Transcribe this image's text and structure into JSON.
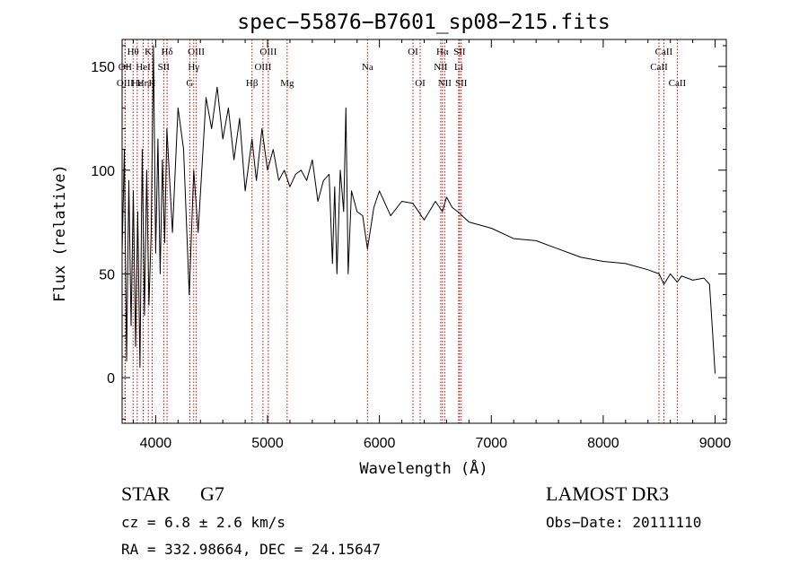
{
  "chart_data": {
    "type": "line",
    "title": "spec−55876−B7601_sp08−215.fits",
    "xlabel": "Wavelength (Å)",
    "ylabel": "Flux (relative)",
    "xlim": [
      3700,
      9100
    ],
    "ylim": [
      -22,
      163
    ],
    "xticks": [
      4000,
      5000,
      6000,
      7000,
      8000,
      9000
    ],
    "xtick_labels": [
      "4000",
      "5000",
      "6000",
      "7000",
      "8000",
      "9000"
    ],
    "yticks": [
      0,
      50,
      100,
      150
    ],
    "ytick_labels": [
      "0",
      "50",
      "100",
      "150"
    ],
    "series": [
      {
        "name": "flux",
        "x": [
          3700,
          3720,
          3740,
          3760,
          3780,
          3800,
          3820,
          3840,
          3860,
          3880,
          3900,
          3920,
          3940,
          3960,
          3980,
          4000,
          4020,
          4040,
          4060,
          4080,
          4100,
          4150,
          4200,
          4250,
          4300,
          4340,
          4380,
          4450,
          4500,
          4550,
          4600,
          4650,
          4700,
          4750,
          4800,
          4861,
          4900,
          4950,
          5000,
          5050,
          5100,
          5150,
          5200,
          5250,
          5300,
          5350,
          5400,
          5450,
          5500,
          5550,
          5580,
          5600,
          5620,
          5650,
          5680,
          5700,
          5720,
          5750,
          5800,
          5850,
          5893,
          5950,
          6000,
          6100,
          6200,
          6300,
          6400,
          6500,
          6563,
          6600,
          6650,
          6700,
          6800,
          7000,
          7200,
          7400,
          7600,
          7800,
          8000,
          8200,
          8400,
          8500,
          8542,
          8600,
          8662,
          8700,
          8800,
          8900,
          8950,
          8980,
          9000
        ],
        "values": [
          60,
          110,
          8,
          95,
          25,
          90,
          15,
          80,
          5,
          110,
          30,
          100,
          35,
          70,
          160,
          60,
          115,
          50,
          105,
          65,
          120,
          70,
          130,
          110,
          40,
          100,
          70,
          135,
          120,
          140,
          115,
          130,
          105,
          125,
          90,
          115,
          95,
          120,
          100,
          110,
          95,
          100,
          92,
          98,
          100,
          95,
          105,
          85,
          95,
          98,
          55,
          92,
          50,
          100,
          80,
          130,
          50,
          90,
          80,
          78,
          62,
          82,
          90,
          78,
          85,
          84,
          76,
          85,
          80,
          87,
          82,
          80,
          75,
          72,
          67,
          66,
          62,
          58,
          56,
          55,
          52,
          50,
          45,
          50,
          46,
          49,
          47,
          48,
          45,
          20,
          2
        ]
      }
    ],
    "spectral_lines": [
      {
        "label": "Hθ",
        "wavelength": 3798,
        "row": 0
      },
      {
        "label": "OII",
        "wavelength": 3727,
        "row": 1
      },
      {
        "label": "OIII",
        "wavelength": 3727,
        "row": 2
      },
      {
        "label": "Hε",
        "wavelength": 3835,
        "row": 2
      },
      {
        "label": "Hη",
        "wavelength": 3889,
        "row": 2
      },
      {
        "label": "K",
        "wavelength": 3934,
        "row": 0
      },
      {
        "label": "HeI",
        "wavelength": 3889,
        "row": 1
      },
      {
        "label": "H",
        "wavelength": 3969,
        "row": 2
      },
      {
        "label": "SII",
        "wavelength": 4072,
        "row": 1
      },
      {
        "label": "Hδ",
        "wavelength": 4102,
        "row": 0
      },
      {
        "label": "OIII",
        "wavelength": 4363,
        "row": 0
      },
      {
        "label": "Hγ",
        "wavelength": 4340,
        "row": 1
      },
      {
        "label": "G",
        "wavelength": 4305,
        "row": 2
      },
      {
        "label": "Hβ",
        "wavelength": 4861,
        "row": 2
      },
      {
        "label": "OIII",
        "wavelength": 5007,
        "row": 0
      },
      {
        "label": "OIII",
        "wavelength": 4959,
        "row": 1
      },
      {
        "label": "Mg",
        "wavelength": 5175,
        "row": 2
      },
      {
        "label": "Na",
        "wavelength": 5893,
        "row": 1
      },
      {
        "label": "OI",
        "wavelength": 6300,
        "row": 0
      },
      {
        "label": "OI",
        "wavelength": 6364,
        "row": 2
      },
      {
        "label": "Hα",
        "wavelength": 6563,
        "row": 0
      },
      {
        "label": "NII",
        "wavelength": 6548,
        "row": 1
      },
      {
        "label": "NII",
        "wavelength": 6583,
        "row": 2
      },
      {
        "label": "SII",
        "wavelength": 6716,
        "row": 0
      },
      {
        "label": "Li",
        "wavelength": 6708,
        "row": 1
      },
      {
        "label": "SII",
        "wavelength": 6731,
        "row": 2
      },
      {
        "label": "CaII",
        "wavelength": 8542,
        "row": 0
      },
      {
        "label": "CaII",
        "wavelength": 8498,
        "row": 1
      },
      {
        "label": "CaII",
        "wavelength": 8662,
        "row": 2
      }
    ]
  },
  "info": {
    "object_class": "STAR",
    "subclass": "G7",
    "survey": "LAMOST DR3",
    "cz": "cz = 6.8 ± 2.6 km/s",
    "obs_date": "Obs−Date: 20111110",
    "coords": "RA = 332.98664, DEC =  24.15647"
  },
  "colors": {
    "spectrum": "#000000",
    "line_markers": "#cc0000",
    "axes": "#000000"
  }
}
